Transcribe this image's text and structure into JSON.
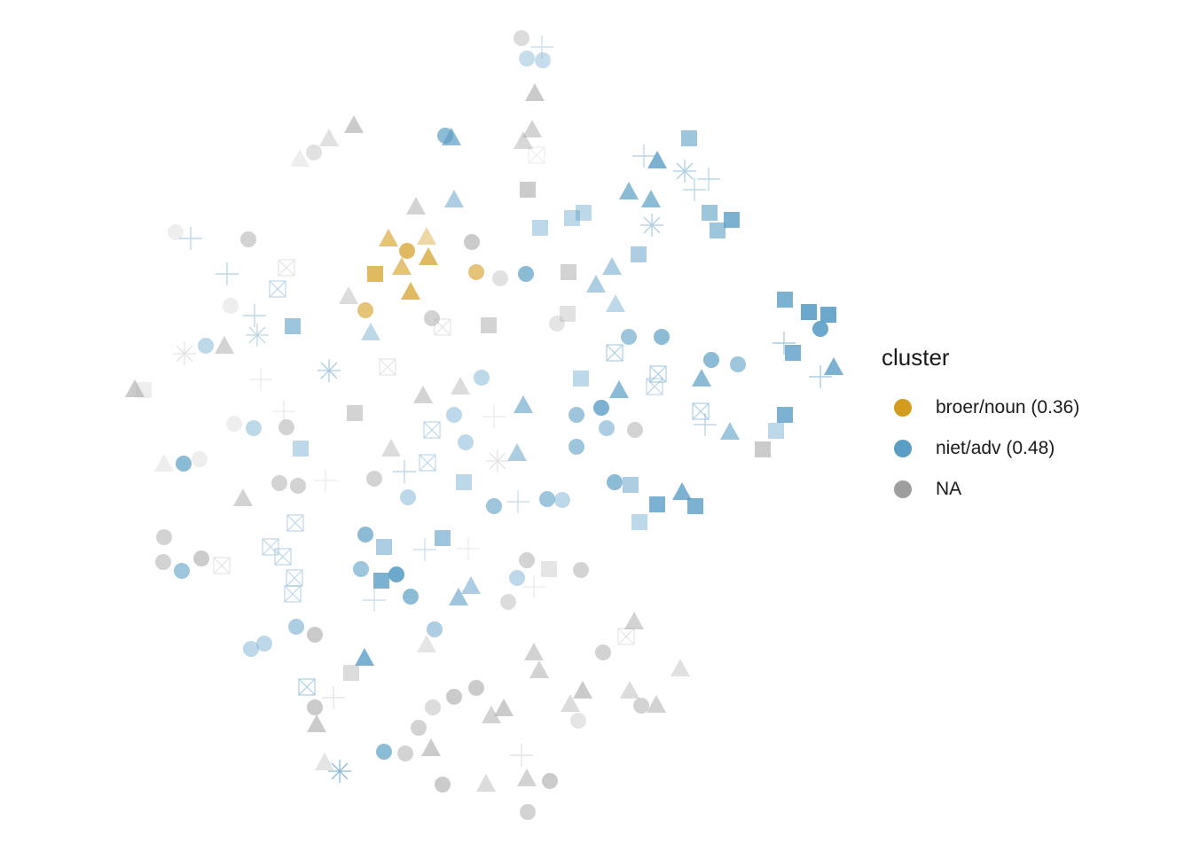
{
  "chart_data": {
    "type": "scatter",
    "title": "",
    "xlabel": "",
    "ylabel": "",
    "grid": false,
    "axes_visible": false,
    "legend": {
      "title": "cluster",
      "position": "right",
      "items": [
        {
          "label": "broer/noun (0.36)",
          "color": "#d39c1f"
        },
        {
          "label": "niet/adv (0.48)",
          "color": "#5b9ec5"
        },
        {
          "label": "NA",
          "color": "#9e9e9e"
        }
      ]
    },
    "shapes": [
      "circle",
      "triangle",
      "square",
      "plus",
      "boxcross",
      "asterisk"
    ],
    "points": [
      [
        "na",
        "circle",
        588,
        43,
        0.4
      ],
      [
        "blue",
        "plus",
        611,
        53,
        0.3
      ],
      [
        "blue",
        "circle",
        594,
        66,
        0.35
      ],
      [
        "blue",
        "circle",
        612,
        68,
        0.35
      ],
      [
        "na",
        "triangle",
        603,
        106,
        0.6
      ],
      [
        "na",
        "triangle",
        600,
        147,
        0.5
      ],
      [
        "na",
        "triangle",
        590,
        160,
        0.45
      ],
      [
        "blue",
        "circle",
        502,
        153,
        0.7
      ],
      [
        "blue",
        "triangle",
        509,
        156,
        0.7
      ],
      [
        "na",
        "triangle",
        399,
        142,
        0.6
      ],
      [
        "na",
        "triangle",
        371,
        157,
        0.35
      ],
      [
        "na",
        "circle",
        354,
        172,
        0.35
      ],
      [
        "na",
        "triangle",
        338,
        180,
        0.2
      ],
      [
        "na",
        "boxcross",
        605,
        175,
        0.2
      ],
      [
        "na",
        "square",
        595,
        214,
        0.6
      ],
      [
        "blue",
        "triangle",
        512,
        226,
        0.5
      ],
      [
        "na",
        "triangle",
        469,
        234,
        0.5
      ],
      [
        "blue",
        "square",
        777,
        156,
        0.6
      ],
      [
        "blue",
        "plus",
        726,
        176,
        0.4
      ],
      [
        "blue",
        "triangle",
        741,
        182,
        0.8
      ],
      [
        "blue",
        "asterisk",
        772,
        193,
        0.5
      ],
      [
        "blue",
        "plus",
        799,
        202,
        0.4
      ],
      [
        "blue",
        "plus",
        783,
        214,
        0.4
      ],
      [
        "blue",
        "triangle",
        709,
        217,
        0.7
      ],
      [
        "blue",
        "triangle",
        734,
        226,
        0.7
      ],
      [
        "blue",
        "square",
        800,
        240,
        0.6
      ],
      [
        "blue",
        "square",
        825,
        248,
        0.8
      ],
      [
        "blue",
        "square",
        809,
        260,
        0.6
      ],
      [
        "blue",
        "asterisk",
        735,
        254,
        0.5
      ],
      [
        "blue",
        "square",
        658,
        240,
        0.4
      ],
      [
        "blue",
        "square",
        645,
        246,
        0.4
      ],
      [
        "blue",
        "square",
        609,
        257,
        0.4
      ],
      [
        "na",
        "circle",
        198,
        262,
        0.2
      ],
      [
        "blue",
        "plus",
        215,
        269,
        0.4
      ],
      [
        "na",
        "circle",
        280,
        270,
        0.5
      ],
      [
        "gold",
        "triangle",
        438,
        270,
        0.6
      ],
      [
        "gold",
        "triangle",
        481,
        268,
        0.4
      ],
      [
        "gold",
        "circle",
        459,
        283,
        0.7
      ],
      [
        "gold",
        "triangle",
        483,
        291,
        0.7
      ],
      [
        "gold",
        "triangle",
        453,
        302,
        0.6
      ],
      [
        "gold",
        "square",
        423,
        309,
        0.7
      ],
      [
        "gold",
        "triangle",
        463,
        330,
        0.7
      ],
      [
        "gold",
        "circle",
        537,
        307,
        0.6
      ],
      [
        "gold",
        "circle",
        412,
        350,
        0.6
      ],
      [
        "na",
        "circle",
        532,
        273,
        0.6
      ],
      [
        "na",
        "circle",
        564,
        314,
        0.35
      ],
      [
        "blue",
        "circle",
        593,
        309,
        0.7
      ],
      [
        "na",
        "square",
        641,
        307,
        0.5
      ],
      [
        "blue",
        "triangle",
        690,
        302,
        0.5
      ],
      [
        "blue",
        "triangle",
        672,
        322,
        0.5
      ],
      [
        "blue",
        "square",
        720,
        287,
        0.5
      ],
      [
        "blue",
        "triangle",
        694,
        344,
        0.4
      ],
      [
        "na",
        "square",
        640,
        354,
        0.35
      ],
      [
        "na",
        "circle",
        628,
        365,
        0.3
      ],
      [
        "na",
        "boxcross",
        323,
        302,
        0.3
      ],
      [
        "blue",
        "plus",
        256,
        309,
        0.4
      ],
      [
        "blue",
        "boxcross",
        313,
        326,
        0.4
      ],
      [
        "na",
        "circle",
        260,
        345,
        0.2
      ],
      [
        "blue",
        "plus",
        287,
        356,
        0.4
      ],
      [
        "blue",
        "square",
        330,
        368,
        0.6
      ],
      [
        "blue",
        "asterisk",
        290,
        378,
        0.4
      ],
      [
        "na",
        "triangle",
        393,
        335,
        0.4
      ],
      [
        "na",
        "circle",
        487,
        359,
        0.5
      ],
      [
        "na",
        "boxcross",
        499,
        369,
        0.3
      ],
      [
        "na",
        "square",
        551,
        367,
        0.5
      ],
      [
        "blue",
        "triangle",
        418,
        376,
        0.4
      ],
      [
        "na",
        "asterisk",
        208,
        399,
        0.3
      ],
      [
        "blue",
        "circle",
        232,
        390,
        0.4
      ],
      [
        "na",
        "triangle",
        253,
        391,
        0.5
      ],
      [
        "na",
        "triangle",
        152,
        440,
        0.6
      ],
      [
        "na",
        "square",
        162,
        440,
        0.2
      ],
      [
        "na",
        "plus",
        294,
        428,
        0.2
      ],
      [
        "blue",
        "asterisk",
        371,
        418,
        0.5
      ],
      [
        "na",
        "boxcross",
        437,
        414,
        0.3
      ],
      [
        "blue",
        "circle",
        543,
        426,
        0.4
      ],
      [
        "na",
        "triangle",
        477,
        447,
        0.5
      ],
      [
        "na",
        "triangle",
        519,
        437,
        0.4
      ],
      [
        "blue",
        "circle",
        709,
        380,
        0.6
      ],
      [
        "blue",
        "circle",
        746,
        380,
        0.7
      ],
      [
        "blue",
        "boxcross",
        693,
        398,
        0.5
      ],
      [
        "blue",
        "boxcross",
        742,
        422,
        0.5
      ],
      [
        "blue",
        "boxcross",
        738,
        436,
        0.4
      ],
      [
        "blue",
        "square",
        655,
        427,
        0.4
      ],
      [
        "blue",
        "triangle",
        698,
        441,
        0.7
      ],
      [
        "blue",
        "circle",
        802,
        406,
        0.7
      ],
      [
        "blue",
        "circle",
        832,
        411,
        0.6
      ],
      [
        "blue",
        "triangle",
        791,
        428,
        0.7
      ],
      [
        "blue",
        "square",
        885,
        338,
        0.8
      ],
      [
        "blue",
        "square",
        912,
        352,
        0.9
      ],
      [
        "blue",
        "square",
        934,
        355,
        0.9
      ],
      [
        "blue",
        "circle",
        925,
        371,
        0.9
      ],
      [
        "blue",
        "plus",
        884,
        387,
        0.5
      ],
      [
        "blue",
        "square",
        894,
        398,
        0.8
      ],
      [
        "blue",
        "triangle",
        940,
        415,
        0.8
      ],
      [
        "blue",
        "plus",
        925,
        425,
        0.5
      ],
      [
        "na",
        "square",
        400,
        466,
        0.5
      ],
      [
        "na",
        "plus",
        320,
        464,
        0.2
      ],
      [
        "na",
        "circle",
        264,
        478,
        0.2
      ],
      [
        "blue",
        "circle",
        286,
        483,
        0.4
      ],
      [
        "na",
        "circle",
        323,
        482,
        0.5
      ],
      [
        "blue",
        "circle",
        512,
        468,
        0.4
      ],
      [
        "na",
        "plus",
        557,
        470,
        0.2
      ],
      [
        "blue",
        "triangle",
        590,
        458,
        0.6
      ],
      [
        "blue",
        "boxcross",
        487,
        485,
        0.4
      ],
      [
        "blue",
        "circle",
        650,
        468,
        0.6
      ],
      [
        "blue",
        "circle",
        678,
        460,
        0.8
      ],
      [
        "blue",
        "circle",
        684,
        483,
        0.5
      ],
      [
        "na",
        "circle",
        716,
        485,
        0.5
      ],
      [
        "blue",
        "boxcross",
        790,
        464,
        0.5
      ],
      [
        "blue",
        "plus",
        795,
        479,
        0.4
      ],
      [
        "blue",
        "triangle",
        823,
        488,
        0.6
      ],
      [
        "blue",
        "square",
        885,
        468,
        0.8
      ],
      [
        "blue",
        "square",
        875,
        486,
        0.4
      ],
      [
        "na",
        "square",
        860,
        507,
        0.6
      ],
      [
        "blue",
        "square",
        339,
        506,
        0.4
      ],
      [
        "blue",
        "circle",
        525,
        499,
        0.4
      ],
      [
        "blue",
        "circle",
        650,
        504,
        0.6
      ],
      [
        "na",
        "triangle",
        441,
        507,
        0.4
      ],
      [
        "blue",
        "triangle",
        583,
        512,
        0.5
      ],
      [
        "na",
        "asterisk",
        561,
        520,
        0.3
      ],
      [
        "blue",
        "boxcross",
        482,
        522,
        0.4
      ],
      [
        "blue",
        "plus",
        456,
        532,
        0.4
      ],
      [
        "na",
        "triangle",
        185,
        524,
        0.2
      ],
      [
        "blue",
        "circle",
        207,
        523,
        0.7
      ],
      [
        "na",
        "circle",
        225,
        518,
        0.2
      ],
      [
        "na",
        "plus",
        367,
        542,
        0.2
      ],
      [
        "na",
        "circle",
        315,
        545,
        0.5
      ],
      [
        "na",
        "circle",
        336,
        548,
        0.5
      ],
      [
        "na",
        "circle",
        422,
        540,
        0.5
      ],
      [
        "blue",
        "square",
        523,
        544,
        0.4
      ],
      [
        "blue",
        "circle",
        693,
        544,
        0.7
      ],
      [
        "blue",
        "square",
        711,
        547,
        0.5
      ],
      [
        "blue",
        "triangle",
        769,
        556,
        0.8
      ],
      [
        "blue",
        "square",
        784,
        571,
        0.8
      ],
      [
        "blue",
        "square",
        741,
        569,
        0.8
      ],
      [
        "blue",
        "square",
        721,
        589,
        0.4
      ],
      [
        "na",
        "triangle",
        274,
        563,
        0.5
      ],
      [
        "blue",
        "circle",
        460,
        561,
        0.4
      ],
      [
        "blue",
        "circle",
        557,
        571,
        0.6
      ],
      [
        "blue",
        "plus",
        584,
        566,
        0.3
      ],
      [
        "blue",
        "circle",
        617,
        563,
        0.6
      ],
      [
        "blue",
        "circle",
        634,
        564,
        0.4
      ],
      [
        "blue",
        "boxcross",
        333,
        590,
        0.4
      ],
      [
        "na",
        "circle",
        185,
        606,
        0.5
      ],
      [
        "na",
        "circle",
        184,
        634,
        0.5
      ],
      [
        "blue",
        "circle",
        205,
        644,
        0.6
      ],
      [
        "na",
        "circle",
        227,
        630,
        0.6
      ],
      [
        "na",
        "boxcross",
        250,
        638,
        0.3
      ],
      [
        "blue",
        "boxcross",
        305,
        617,
        0.4
      ],
      [
        "blue",
        "boxcross",
        319,
        628,
        0.4
      ],
      [
        "blue",
        "circle",
        412,
        603,
        0.7
      ],
      [
        "blue",
        "square",
        433,
        617,
        0.5
      ],
      [
        "blue",
        "square",
        499,
        607,
        0.6
      ],
      [
        "blue",
        "plus",
        479,
        620,
        0.3
      ],
      [
        "na",
        "plus",
        528,
        619,
        0.2
      ],
      [
        "blue",
        "circle",
        407,
        642,
        0.6
      ],
      [
        "blue",
        "circle",
        447,
        648,
        0.9
      ],
      [
        "blue",
        "square",
        430,
        655,
        0.8
      ],
      [
        "blue",
        "circle",
        463,
        673,
        0.7
      ],
      [
        "blue",
        "plus",
        422,
        677,
        0.3
      ],
      [
        "blue",
        "triangle",
        531,
        662,
        0.5
      ],
      [
        "blue",
        "triangle",
        517,
        675,
        0.6
      ],
      [
        "na",
        "circle",
        594,
        632,
        0.5
      ],
      [
        "na",
        "square",
        619,
        642,
        0.3
      ],
      [
        "na",
        "circle",
        655,
        643,
        0.5
      ],
      [
        "blue",
        "circle",
        583,
        652,
        0.4
      ],
      [
        "na",
        "plus",
        602,
        662,
        0.2
      ],
      [
        "na",
        "circle",
        573,
        679,
        0.4
      ],
      [
        "blue",
        "boxcross",
        332,
        652,
        0.4
      ],
      [
        "blue",
        "boxcross",
        330,
        670,
        0.4
      ],
      [
        "blue",
        "circle",
        334,
        707,
        0.5
      ],
      [
        "na",
        "circle",
        355,
        716,
        0.6
      ],
      [
        "blue",
        "circle",
        283,
        732,
        0.4
      ],
      [
        "blue",
        "circle",
        298,
        726,
        0.4
      ],
      [
        "blue",
        "circle",
        490,
        710,
        0.5
      ],
      [
        "na",
        "triangle",
        481,
        728,
        0.3
      ],
      [
        "na",
        "triangle",
        715,
        702,
        0.5
      ],
      [
        "na",
        "boxcross",
        706,
        718,
        0.3
      ],
      [
        "na",
        "circle",
        680,
        736,
        0.5
      ],
      [
        "na",
        "triangle",
        602,
        737,
        0.5
      ],
      [
        "na",
        "triangle",
        608,
        757,
        0.5
      ],
      [
        "na",
        "triangle",
        767,
        755,
        0.35
      ],
      [
        "blue",
        "triangle",
        411,
        743,
        0.8
      ],
      [
        "na",
        "square",
        396,
        759,
        0.4
      ],
      [
        "blue",
        "boxcross",
        346,
        775,
        0.5
      ],
      [
        "na",
        "plus",
        376,
        787,
        0.3
      ],
      [
        "na",
        "circle",
        355,
        798,
        0.6
      ],
      [
        "na",
        "triangle",
        357,
        818,
        0.6
      ],
      [
        "na",
        "circle",
        537,
        776,
        0.6
      ],
      [
        "na",
        "circle",
        512,
        786,
        0.6
      ],
      [
        "na",
        "circle",
        488,
        798,
        0.4
      ],
      [
        "na",
        "triangle",
        568,
        800,
        0.6
      ],
      [
        "na",
        "triangle",
        554,
        808,
        0.5
      ],
      [
        "na",
        "triangle",
        657,
        780,
        0.6
      ],
      [
        "na",
        "triangle",
        643,
        795,
        0.4
      ],
      [
        "na",
        "triangle",
        710,
        780,
        0.4
      ],
      [
        "na",
        "circle",
        723,
        796,
        0.5
      ],
      [
        "na",
        "triangle",
        740,
        796,
        0.5
      ],
      [
        "na",
        "circle",
        652,
        813,
        0.3
      ],
      [
        "na",
        "circle",
        472,
        821,
        0.5
      ],
      [
        "na",
        "triangle",
        486,
        845,
        0.6
      ],
      [
        "blue",
        "circle",
        433,
        848,
        0.7
      ],
      [
        "na",
        "circle",
        457,
        850,
        0.5
      ],
      [
        "na",
        "plus",
        588,
        852,
        0.3
      ],
      [
        "na",
        "triangle",
        366,
        861,
        0.3
      ],
      [
        "blue",
        "asterisk",
        383,
        870,
        0.7
      ],
      [
        "na",
        "circle",
        499,
        885,
        0.6
      ],
      [
        "na",
        "triangle",
        548,
        885,
        0.4
      ],
      [
        "na",
        "triangle",
        594,
        879,
        0.5
      ],
      [
        "na",
        "circle",
        620,
        881,
        0.6
      ],
      [
        "na",
        "circle",
        595,
        916,
        0.5
      ]
    ]
  }
}
